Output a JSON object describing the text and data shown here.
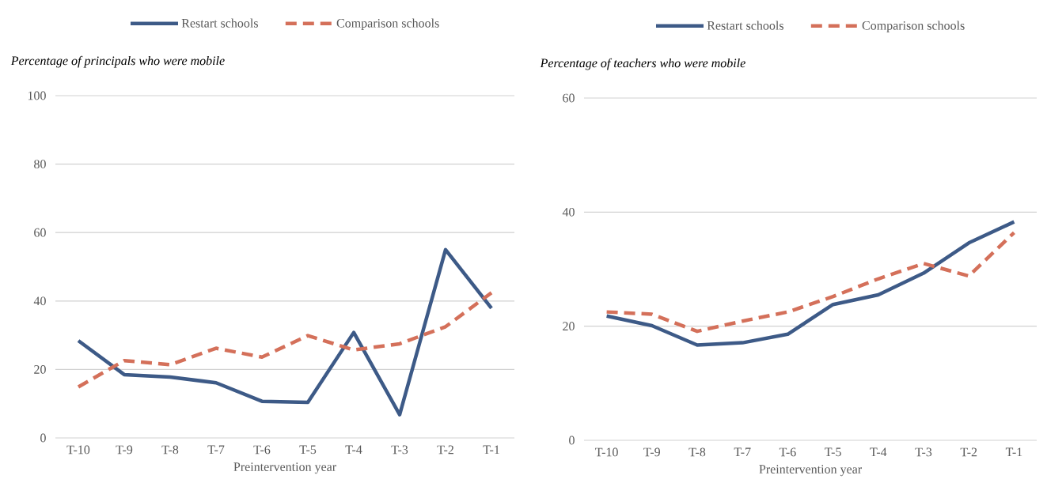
{
  "chart_data": [
    {
      "type": "line",
      "title": "Percentage of principals who were mobile",
      "xlabel": "Preintervention year",
      "categories": [
        "T-10",
        "T-9",
        "T-8",
        "T-7",
        "T-6",
        "T-5",
        "T-4",
        "T-3",
        "T-2",
        "T-1"
      ],
      "series": [
        {
          "name": "Restart schools",
          "color": "#3d5a87",
          "line_style": "solid",
          "values": [
            28.4,
            18.5,
            17.8,
            16.1,
            10.7,
            10.4,
            30.8,
            6.8,
            55.0,
            37.9
          ]
        },
        {
          "name": "Comparison schools",
          "color": "#d4705a",
          "line_style": "dashed",
          "values": [
            14.9,
            22.6,
            21.4,
            26.2,
            23.6,
            29.9,
            25.7,
            27.5,
            32.5,
            42.4
          ]
        }
      ],
      "ylim": [
        0,
        100
      ],
      "yticks": [
        0,
        20,
        40,
        60,
        80,
        100
      ],
      "grid": "y",
      "legend": "top",
      "marker": "none"
    },
    {
      "type": "line",
      "title": "Percentage of teachers who were mobile",
      "xlabel": "Preintervention year",
      "categories": [
        "T-10",
        "T-9",
        "T-8",
        "T-7",
        "T-6",
        "T-5",
        "T-4",
        "T-3",
        "T-2",
        "T-1"
      ],
      "series": [
        {
          "name": "Restart schools",
          "color": "#3d5a87",
          "line_style": "solid",
          "values": [
            21.8,
            20.1,
            16.7,
            17.1,
            18.6,
            23.8,
            25.5,
            29.3,
            34.6,
            38.3
          ]
        },
        {
          "name": "Comparison schools",
          "color": "#d4705a",
          "line_style": "dashed",
          "values": [
            22.5,
            22.1,
            19.1,
            20.9,
            22.5,
            25.2,
            28.3,
            31.0,
            28.8,
            36.4
          ]
        }
      ],
      "ylim": [
        0,
        60
      ],
      "yticks": [
        0,
        20,
        40,
        60
      ],
      "grid": "y",
      "legend": "top",
      "marker": "none"
    }
  ]
}
